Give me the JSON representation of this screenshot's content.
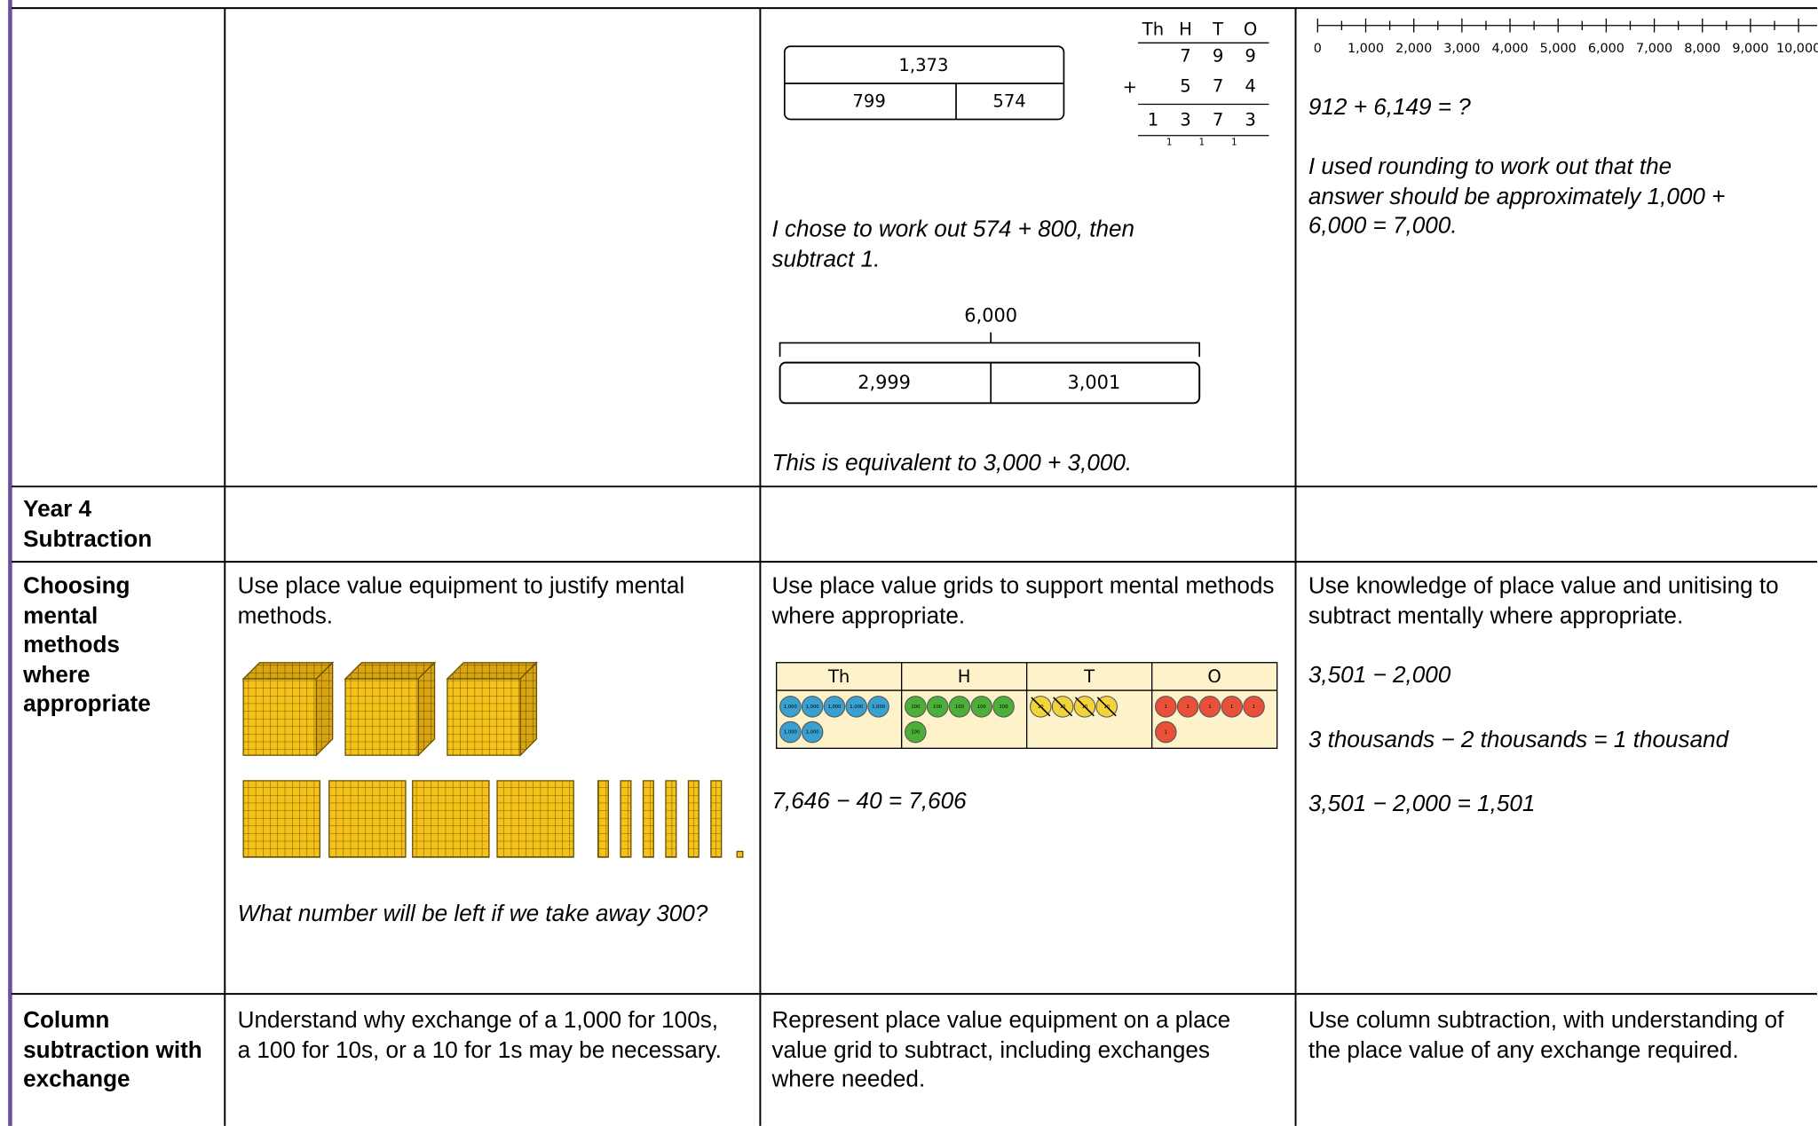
{
  "rows": [
    {
      "addition": {
        "bar_model": {
          "whole": "1,373",
          "parts": [
            "799",
            "574"
          ]
        },
        "column_method": {
          "headers": [
            "Th",
            "H",
            "T",
            "O"
          ],
          "addend_1": [
            "7",
            "9",
            "9"
          ],
          "operator": "+",
          "addend_2": [
            "5",
            "7",
            "4"
          ],
          "sum": [
            "1",
            "3",
            "7",
            "3"
          ],
          "carries": [
            "1",
            "1",
            "1"
          ]
        },
        "explanation": "I chose to work out 574 + 800, then subtract 1.",
        "bar_model_2": {
          "whole": "6,000",
          "parts": [
            "2,999",
            "3,001"
          ]
        },
        "equivalence": "This is equivalent to 3,000 + 3,000."
      },
      "estimation": {
        "number_line": [
          "0",
          "1,000",
          "2,000",
          "3,000",
          "4,000",
          "5,000",
          "6,000",
          "7,000",
          "8,000",
          "9,000",
          "10,000"
        ],
        "question": "912 + 6,149 = ?",
        "explanation": "I used rounding to work out that the answer should be approximately 1,000 + 6,000 = 7,000."
      }
    },
    {
      "heading": "Year 4 Subtraction"
    },
    {
      "heading": "Choosing mental methods where appropriate",
      "concrete": {
        "text": "Use place value equipment to justify mental methods.",
        "question": "What number will be left if we take away 300?"
      },
      "pictorial": {
        "text": "Use place value grids to support mental methods where appropriate.",
        "grid_headers": [
          "Th",
          "H",
          "T",
          "O"
        ],
        "counter_labels": [
          "1,000",
          "100",
          "10",
          "1"
        ],
        "equation": "7,646 − 40 = 7,606"
      },
      "abstract": {
        "text": "Use knowledge of place value and unitising to subtract mentally where appropriate.",
        "lines": [
          "3,501 − 2,000",
          "3 thousands − 2 thousands = 1 thousand",
          "3,501 − 2,000 = 1,501"
        ]
      }
    },
    {
      "heading": "Column subtraction with exchange",
      "concrete": {
        "text": "Understand why exchange of a 1,000 for 100s, a 100 for 10s, or a 10 for 1s may be necessary."
      },
      "pictorial": {
        "text": "Represent place value equipment on a place value grid to subtract, including exchanges where needed."
      },
      "abstract": {
        "text": "Use column subtraction, with understanding of the place value of any exchange required."
      }
    }
  ]
}
